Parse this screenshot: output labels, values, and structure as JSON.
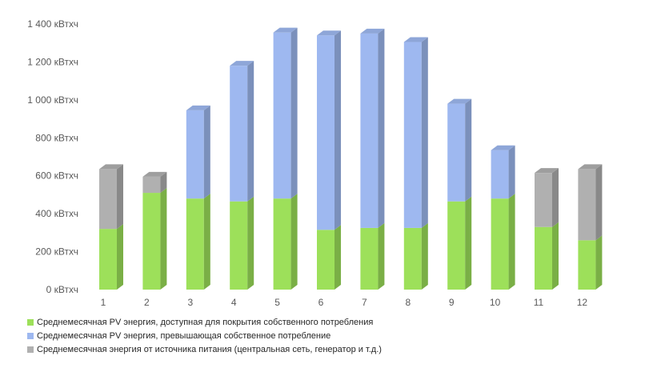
{
  "chart_data": {
    "type": "bar",
    "stacked": true,
    "style": "3d-stacked-column",
    "categories": [
      "1",
      "2",
      "3",
      "4",
      "5",
      "6",
      "7",
      "8",
      "9",
      "10",
      "11",
      "12"
    ],
    "series": [
      {
        "name": "Среднемесячная PV энергия, доступная для покрытия собственного потребления",
        "color": "#9de05a",
        "values": [
          320,
          510,
          480,
          465,
          480,
          315,
          325,
          325,
          465,
          480,
          330,
          260
        ]
      },
      {
        "name": "Среднемесячная PV энергия, превышающая собственное потребление",
        "color": "#9eb8f0",
        "values": [
          0,
          0,
          465,
          715,
          875,
          1025,
          1025,
          980,
          515,
          255,
          0,
          0
        ]
      },
      {
        "name": "Среднемесячная энергия от источника питания (центральная сеть, генератор и т.д.)",
        "color": "#b0b0b0",
        "values": [
          315,
          85,
          0,
          0,
          0,
          0,
          0,
          0,
          0,
          0,
          285,
          375
        ]
      }
    ],
    "y_ticks": [
      "0 кВтхч",
      "200 кВтхч",
      "400 кВтхч",
      "600 кВтхч",
      "800 кВтхч",
      "1 000 кВтхч",
      "1 200 кВтхч",
      "1 400 кВтхч"
    ],
    "y_tick_values": [
      0,
      200,
      400,
      600,
      800,
      1000,
      1200,
      1400
    ],
    "ylim": [
      0,
      1400
    ],
    "grid": false,
    "legend_position": "bottom-left"
  }
}
